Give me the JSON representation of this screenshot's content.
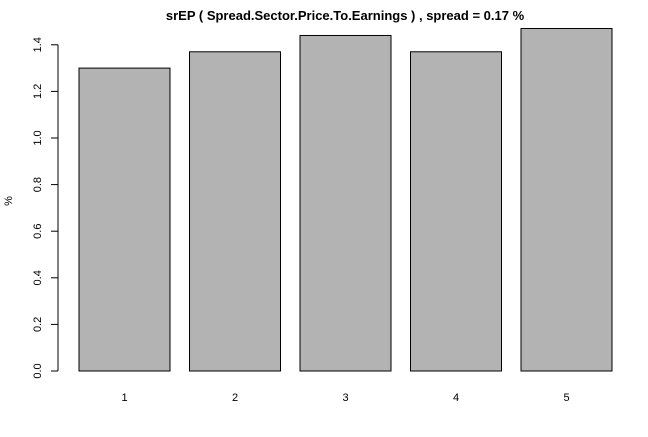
{
  "chart_data": {
    "type": "bar",
    "title": "srEP ( Spread.Sector.Price.To.Earnings ) , spread = 0.17 %",
    "xlabel": "",
    "ylabel": "%",
    "categories": [
      "1",
      "2",
      "3",
      "4",
      "5"
    ],
    "values": [
      1.3,
      1.37,
      1.44,
      1.37,
      1.47
    ],
    "ylim": [
      0,
      1.47
    ],
    "yticks": [
      "0.0",
      "0.2",
      "0.4",
      "0.6",
      "0.8",
      "1.0",
      "1.2",
      "1.4"
    ],
    "grid": false,
    "legend": "none",
    "colors": {
      "bar_fill": "#b3b3b3",
      "bar_stroke": "#000000",
      "axis": "#000000"
    }
  }
}
